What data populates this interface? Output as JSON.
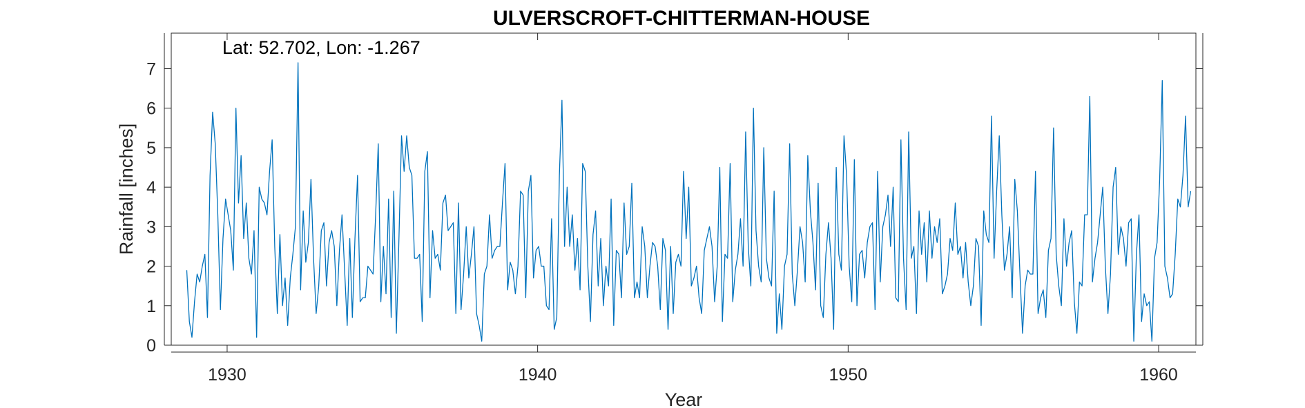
{
  "chart_data": {
    "type": "line",
    "title": "ULVERSCROFT-CHITTERMAN-HOUSE",
    "annotation": "Lat: 52.702, Lon: -1.267",
    "xlabel": "Year",
    "ylabel": "Rainfall [inches]",
    "xlim": [
      1928.2,
      1961.2
    ],
    "ylim": [
      0,
      7.9
    ],
    "xticks": [
      1930,
      1940,
      1950,
      1960
    ],
    "yticks": [
      0,
      1,
      2,
      3,
      4,
      5,
      6,
      7
    ],
    "grid": false,
    "series": [
      {
        "color": "#0072BD",
        "start_year": 1928.7,
        "step": 0.0833333,
        "values": [
          1.9,
          0.6,
          0.2,
          1.1,
          1.8,
          1.6,
          2.0,
          2.3,
          0.7,
          4.3,
          5.9,
          5.1,
          3.3,
          0.9,
          2.7,
          3.7,
          3.3,
          2.9,
          1.9,
          6.0,
          3.6,
          4.8,
          2.7,
          3.6,
          2.2,
          1.8,
          2.9,
          0.2,
          4.0,
          3.7,
          3.6,
          3.3,
          4.4,
          5.2,
          2.5,
          0.8,
          2.8,
          1.0,
          1.7,
          0.5,
          1.7,
          2.3,
          3.0,
          7.15,
          1.4,
          3.4,
          2.1,
          2.6,
          4.2,
          2.2,
          0.8,
          1.5,
          2.9,
          3.1,
          1.5,
          2.6,
          2.9,
          2.5,
          1.0,
          2.4,
          3.3,
          1.9,
          0.5,
          2.7,
          0.7,
          2.7,
          4.3,
          1.1,
          1.2,
          1.2,
          2.0,
          1.9,
          1.8,
          3.3,
          5.1,
          1.1,
          2.5,
          1.3,
          3.7,
          0.7,
          3.9,
          0.3,
          2.7,
          5.3,
          4.4,
          5.3,
          4.5,
          4.3,
          2.2,
          2.2,
          2.3,
          0.6,
          4.4,
          4.9,
          1.2,
          2.9,
          2.2,
          2.3,
          1.9,
          3.6,
          3.8,
          2.9,
          3.0,
          3.1,
          0.8,
          3.6,
          0.9,
          1.8,
          3.0,
          1.7,
          2.3,
          3.0,
          0.8,
          0.5,
          0.1,
          1.8,
          2.0,
          3.3,
          2.2,
          2.4,
          2.5,
          2.5,
          3.6,
          4.6,
          1.4,
          2.1,
          1.9,
          1.3,
          2.0,
          3.9,
          3.8,
          1.2,
          3.9,
          4.3,
          1.7,
          2.4,
          2.5,
          2.0,
          2.0,
          1.0,
          0.9,
          3.2,
          0.4,
          0.7,
          4.3,
          6.2,
          2.5,
          4.0,
          2.5,
          3.3,
          1.9,
          2.7,
          1.4,
          4.6,
          4.4,
          2.0,
          0.6,
          2.8,
          3.4,
          1.5,
          2.7,
          1.0,
          2.0,
          1.5,
          3.7,
          0.5,
          2.4,
          2.3,
          1.2,
          3.6,
          2.3,
          2.5,
          4.1,
          1.2,
          1.6,
          1.2,
          3.0,
          2.5,
          1.2,
          2.0,
          2.6,
          2.5,
          2.0,
          0.9,
          2.7,
          2.4,
          0.4,
          2.5,
          0.8,
          2.1,
          2.3,
          2.0,
          4.4,
          2.7,
          4.0,
          1.5,
          1.7,
          2.0,
          1.2,
          0.8,
          2.4,
          2.7,
          3.0,
          2.5,
          1.1,
          2.0,
          4.5,
          0.6,
          2.3,
          2.2,
          4.6,
          1.1,
          1.9,
          2.3,
          3.2,
          2.0,
          5.4,
          2.5,
          1.5,
          6.0,
          2.9,
          2.0,
          1.6,
          5.0,
          2.2,
          1.7,
          1.5,
          3.9,
          0.3,
          1.3,
          0.4,
          2.0,
          2.3,
          5.1,
          1.8,
          1.0,
          1.9,
          3.0,
          2.6,
          1.6,
          4.8,
          3.4,
          2.6,
          1.4,
          4.1,
          1.0,
          0.7,
          2.3,
          3.1,
          2.2,
          0.4,
          4.5,
          2.3,
          1.9,
          5.3,
          4.3,
          2.0,
          1.1,
          4.7,
          1.0,
          2.3,
          2.4,
          1.7,
          2.6,
          3.0,
          3.1,
          0.9,
          4.4,
          1.6,
          3.0,
          3.3,
          3.8,
          2.5,
          4.0,
          1.2,
          1.1,
          5.2,
          2.2,
          0.9,
          5.4,
          2.2,
          2.5,
          0.8,
          3.4,
          2.3,
          3.1,
          1.6,
          3.4,
          2.2,
          3.0,
          2.6,
          3.2,
          1.3,
          1.5,
          1.8,
          2.7,
          2.4,
          3.6,
          2.3,
          2.5,
          1.7,
          2.6,
          1.6,
          1.0,
          1.5,
          2.7,
          2.5,
          0.5,
          3.4,
          2.8,
          2.6,
          5.8,
          2.2,
          3.9,
          5.3,
          3.3,
          1.9,
          2.3,
          3.0,
          1.2,
          4.2,
          3.4,
          1.8,
          0.3,
          1.5,
          1.9,
          1.8,
          1.8,
          4.4,
          0.8,
          1.2,
          1.4,
          0.7,
          2.4,
          2.7,
          5.5,
          2.3,
          1.5,
          1.0,
          3.2,
          2.0,
          2.6,
          2.9,
          1.1,
          0.3,
          1.6,
          1.5,
          3.3,
          3.3,
          6.3,
          1.6,
          2.2,
          2.6,
          3.3,
          4.0,
          2.0,
          0.8,
          1.8,
          4.0,
          4.5,
          2.3,
          3.0,
          2.7,
          2.0,
          3.1,
          3.2,
          0.1,
          2.3,
          3.3,
          0.6,
          1.3,
          1.0,
          1.1,
          0.1,
          2.2,
          2.6,
          4.2,
          6.7,
          2.0,
          1.7,
          1.2,
          1.3,
          2.3,
          3.7,
          3.5,
          4.3,
          5.8,
          3.5,
          3.9
        ]
      }
    ]
  }
}
